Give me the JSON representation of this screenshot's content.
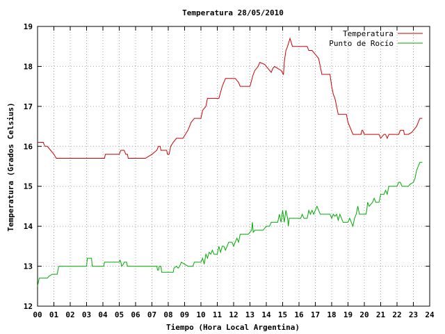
{
  "chart_data": {
    "type": "line",
    "title": "Temperatura 28/05/2010",
    "xlabel": "Tiempo (Hora Local Argentina)",
    "ylabel": "Temperatura (Grados Celsius)",
    "xlim": [
      0,
      24
    ],
    "ylim": [
      12,
      19
    ],
    "x_ticks": [
      "00",
      "01",
      "02",
      "03",
      "04",
      "05",
      "06",
      "07",
      "08",
      "09",
      "10",
      "11",
      "12",
      "13",
      "14",
      "15",
      "16",
      "17",
      "18",
      "19",
      "20",
      "21",
      "22",
      "23",
      "24"
    ],
    "y_ticks": [
      "12",
      "13",
      "14",
      "15",
      "16",
      "17",
      "18",
      "19"
    ],
    "grid": true,
    "legend_position": "top-right",
    "series": [
      {
        "name": "Temperatura",
        "color": "#cc0000",
        "points": [
          [
            0.0,
            16.1
          ],
          [
            0.35,
            16.1
          ],
          [
            0.45,
            16.0
          ],
          [
            0.6,
            16.0
          ],
          [
            0.8,
            15.9
          ],
          [
            1.0,
            15.8
          ],
          [
            1.15,
            15.7
          ],
          [
            3.5,
            15.7
          ],
          [
            4.1,
            15.7
          ],
          [
            4.15,
            15.8
          ],
          [
            5.0,
            15.8
          ],
          [
            5.1,
            15.9
          ],
          [
            5.3,
            15.9
          ],
          [
            5.4,
            15.8
          ],
          [
            5.5,
            15.8
          ],
          [
            5.55,
            15.7
          ],
          [
            6.6,
            15.7
          ],
          [
            7.0,
            15.8
          ],
          [
            7.3,
            15.9
          ],
          [
            7.4,
            16.0
          ],
          [
            7.5,
            16.0
          ],
          [
            7.55,
            15.9
          ],
          [
            7.9,
            15.9
          ],
          [
            7.95,
            15.8
          ],
          [
            8.05,
            15.8
          ],
          [
            8.15,
            16.0
          ],
          [
            8.3,
            16.1
          ],
          [
            8.5,
            16.2
          ],
          [
            8.9,
            16.2
          ],
          [
            9.2,
            16.4
          ],
          [
            9.3,
            16.5
          ],
          [
            9.4,
            16.6
          ],
          [
            9.6,
            16.7
          ],
          [
            10.0,
            16.7
          ],
          [
            10.1,
            16.9
          ],
          [
            10.3,
            17.0
          ],
          [
            10.4,
            17.2
          ],
          [
            10.6,
            17.2
          ],
          [
            11.1,
            17.2
          ],
          [
            11.3,
            17.5
          ],
          [
            11.4,
            17.6
          ],
          [
            11.5,
            17.7
          ],
          [
            12.1,
            17.7
          ],
          [
            12.3,
            17.6
          ],
          [
            12.4,
            17.5
          ],
          [
            13.0,
            17.5
          ],
          [
            13.2,
            17.8
          ],
          [
            13.3,
            17.9
          ],
          [
            13.5,
            18.0
          ],
          [
            13.6,
            18.1
          ],
          [
            13.9,
            18.05
          ],
          [
            14.0,
            18.0
          ],
          [
            14.2,
            17.9
          ],
          [
            14.3,
            17.85
          ],
          [
            14.4,
            17.95
          ],
          [
            14.5,
            18.0
          ],
          [
            14.7,
            17.95
          ],
          [
            14.9,
            17.9
          ],
          [
            15.05,
            17.8
          ],
          [
            15.1,
            18.1
          ],
          [
            15.2,
            18.4
          ],
          [
            15.3,
            18.5
          ],
          [
            15.45,
            18.7
          ],
          [
            15.6,
            18.5
          ],
          [
            16.5,
            18.5
          ],
          [
            16.6,
            18.4
          ],
          [
            16.8,
            18.4
          ],
          [
            17.0,
            18.3
          ],
          [
            17.2,
            18.2
          ],
          [
            17.3,
            18.0
          ],
          [
            17.4,
            17.8
          ],
          [
            17.9,
            17.8
          ],
          [
            18.0,
            17.5
          ],
          [
            18.1,
            17.3
          ],
          [
            18.2,
            17.2
          ],
          [
            18.3,
            17.0
          ],
          [
            18.4,
            16.8
          ],
          [
            18.9,
            16.8
          ],
          [
            19.0,
            16.6
          ],
          [
            19.2,
            16.4
          ],
          [
            19.3,
            16.3
          ],
          [
            19.8,
            16.3
          ],
          [
            19.85,
            16.4
          ],
          [
            19.9,
            16.4
          ],
          [
            20.0,
            16.3
          ],
          [
            20.9,
            16.3
          ],
          [
            21.0,
            16.2
          ],
          [
            21.2,
            16.3
          ],
          [
            21.3,
            16.3
          ],
          [
            21.4,
            16.2
          ],
          [
            21.5,
            16.3
          ],
          [
            22.1,
            16.3
          ],
          [
            22.2,
            16.4
          ],
          [
            22.4,
            16.4
          ],
          [
            22.45,
            16.3
          ],
          [
            22.7,
            16.3
          ],
          [
            22.9,
            16.35
          ],
          [
            23.0,
            16.4
          ],
          [
            23.1,
            16.45
          ],
          [
            23.2,
            16.5
          ],
          [
            23.3,
            16.6
          ],
          [
            23.4,
            16.7
          ],
          [
            23.55,
            16.7
          ]
        ]
      },
      {
        "name": "Punto de Rocío",
        "color": "#00aa00",
        "points": [
          [
            0.0,
            12.5
          ],
          [
            0.05,
            12.6
          ],
          [
            0.1,
            12.7
          ],
          [
            0.6,
            12.7
          ],
          [
            0.7,
            12.75
          ],
          [
            0.9,
            12.8
          ],
          [
            1.2,
            12.8
          ],
          [
            1.3,
            13.0
          ],
          [
            3.0,
            13.0
          ],
          [
            3.05,
            13.2
          ],
          [
            3.3,
            13.2
          ],
          [
            3.35,
            13.0
          ],
          [
            4.05,
            13.0
          ],
          [
            4.1,
            13.1
          ],
          [
            5.0,
            13.1
          ],
          [
            5.05,
            13.15
          ],
          [
            5.1,
            13.1
          ],
          [
            5.15,
            13.0
          ],
          [
            5.25,
            13.05
          ],
          [
            5.3,
            13.1
          ],
          [
            5.45,
            13.1
          ],
          [
            5.5,
            13.0
          ],
          [
            7.3,
            13.0
          ],
          [
            7.35,
            12.9
          ],
          [
            7.4,
            12.9
          ],
          [
            7.45,
            13.0
          ],
          [
            7.55,
            13.0
          ],
          [
            7.6,
            12.85
          ],
          [
            8.3,
            12.85
          ],
          [
            8.35,
            12.95
          ],
          [
            8.5,
            13.0
          ],
          [
            8.6,
            12.95
          ],
          [
            8.7,
            13.0
          ],
          [
            8.8,
            13.1
          ],
          [
            9.0,
            13.05
          ],
          [
            9.2,
            13.0
          ],
          [
            9.5,
            13.0
          ],
          [
            9.6,
            13.1
          ],
          [
            10.0,
            13.1
          ],
          [
            10.1,
            13.2
          ],
          [
            10.2,
            13.05
          ],
          [
            10.3,
            13.3
          ],
          [
            10.4,
            13.2
          ],
          [
            10.5,
            13.35
          ],
          [
            10.6,
            13.3
          ],
          [
            10.7,
            13.4
          ],
          [
            10.8,
            13.3
          ],
          [
            11.0,
            13.3
          ],
          [
            11.1,
            13.5
          ],
          [
            11.2,
            13.35
          ],
          [
            11.3,
            13.5
          ],
          [
            11.4,
            13.5
          ],
          [
            11.5,
            13.4
          ],
          [
            11.6,
            13.5
          ],
          [
            11.7,
            13.6
          ],
          [
            11.9,
            13.6
          ],
          [
            12.0,
            13.5
          ],
          [
            12.1,
            13.6
          ],
          [
            12.2,
            13.7
          ],
          [
            12.3,
            13.6
          ],
          [
            12.4,
            13.8
          ],
          [
            12.9,
            13.8
          ],
          [
            13.0,
            13.85
          ],
          [
            13.1,
            13.9
          ],
          [
            13.15,
            14.1
          ],
          [
            13.2,
            13.85
          ],
          [
            13.3,
            13.9
          ],
          [
            13.4,
            13.9
          ],
          [
            13.5,
            13.9
          ],
          [
            13.8,
            13.9
          ],
          [
            14.0,
            14.0
          ],
          [
            14.2,
            14.0
          ],
          [
            14.3,
            14.1
          ],
          [
            14.7,
            14.1
          ],
          [
            14.8,
            14.3
          ],
          [
            14.9,
            14.1
          ],
          [
            15.0,
            14.4
          ],
          [
            15.1,
            14.1
          ],
          [
            15.2,
            14.4
          ],
          [
            15.3,
            14.2
          ],
          [
            15.35,
            14.0
          ],
          [
            15.4,
            14.2
          ],
          [
            16.1,
            14.2
          ],
          [
            16.2,
            14.3
          ],
          [
            16.3,
            14.2
          ],
          [
            16.5,
            14.2
          ],
          [
            16.6,
            14.4
          ],
          [
            16.7,
            14.3
          ],
          [
            16.8,
            14.4
          ],
          [
            16.9,
            14.3
          ],
          [
            17.0,
            14.4
          ],
          [
            17.1,
            14.5
          ],
          [
            17.2,
            14.4
          ],
          [
            17.3,
            14.3
          ],
          [
            17.9,
            14.3
          ],
          [
            18.0,
            14.2
          ],
          [
            18.1,
            14.3
          ],
          [
            18.2,
            14.25
          ],
          [
            18.3,
            14.3
          ],
          [
            18.4,
            14.15
          ],
          [
            18.5,
            14.3
          ],
          [
            18.6,
            14.2
          ],
          [
            18.7,
            14.1
          ],
          [
            19.0,
            14.1
          ],
          [
            19.1,
            14.2
          ],
          [
            19.2,
            14.1
          ],
          [
            19.3,
            14.0
          ],
          [
            19.4,
            14.2
          ],
          [
            19.5,
            14.3
          ],
          [
            19.6,
            14.5
          ],
          [
            19.7,
            14.3
          ],
          [
            20.1,
            14.3
          ],
          [
            20.15,
            14.4
          ],
          [
            20.2,
            14.6
          ],
          [
            20.3,
            14.5
          ],
          [
            20.5,
            14.6
          ],
          [
            20.6,
            14.7
          ],
          [
            20.7,
            14.6
          ],
          [
            20.9,
            14.6
          ],
          [
            21.0,
            14.8
          ],
          [
            21.2,
            14.8
          ],
          [
            21.3,
            14.9
          ],
          [
            21.4,
            14.8
          ],
          [
            21.5,
            15.0
          ],
          [
            22.0,
            15.0
          ],
          [
            22.1,
            15.1
          ],
          [
            22.2,
            15.1
          ],
          [
            22.3,
            15.0
          ],
          [
            22.7,
            15.0
          ],
          [
            22.8,
            15.05
          ],
          [
            23.0,
            15.1
          ],
          [
            23.1,
            15.2
          ],
          [
            23.2,
            15.4
          ],
          [
            23.3,
            15.5
          ],
          [
            23.4,
            15.6
          ],
          [
            23.55,
            15.6
          ]
        ]
      }
    ]
  }
}
